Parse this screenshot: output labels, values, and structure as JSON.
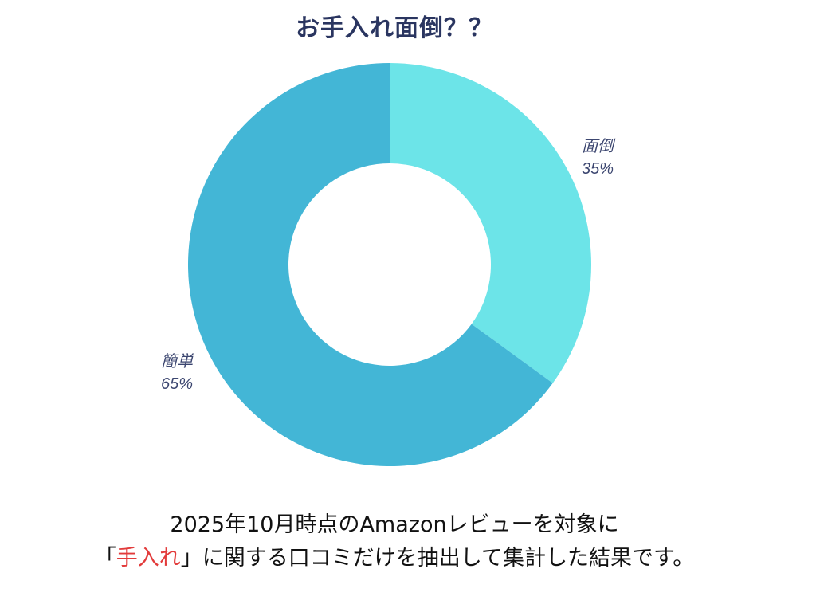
{
  "chart_data": {
    "type": "pie",
    "title": "お手入れ面倒？？",
    "categories": [
      "面倒",
      "簡単"
    ],
    "values": [
      35,
      65
    ],
    "value_labels": [
      "35%",
      "65%"
    ],
    "colors": [
      "#6ce4e8",
      "#43b6d6"
    ],
    "donut": true,
    "legend": "none"
  },
  "caption": {
    "line1": "2025年10月時点のAmazonレビューを対象に",
    "line2_open": "「",
    "line2_highlight": "手入れ",
    "line2_rest": "」に関する口コミだけを抽出して集計した結果です。"
  },
  "colors": {
    "title": "#2a3560",
    "highlight": "#e23b3b"
  }
}
